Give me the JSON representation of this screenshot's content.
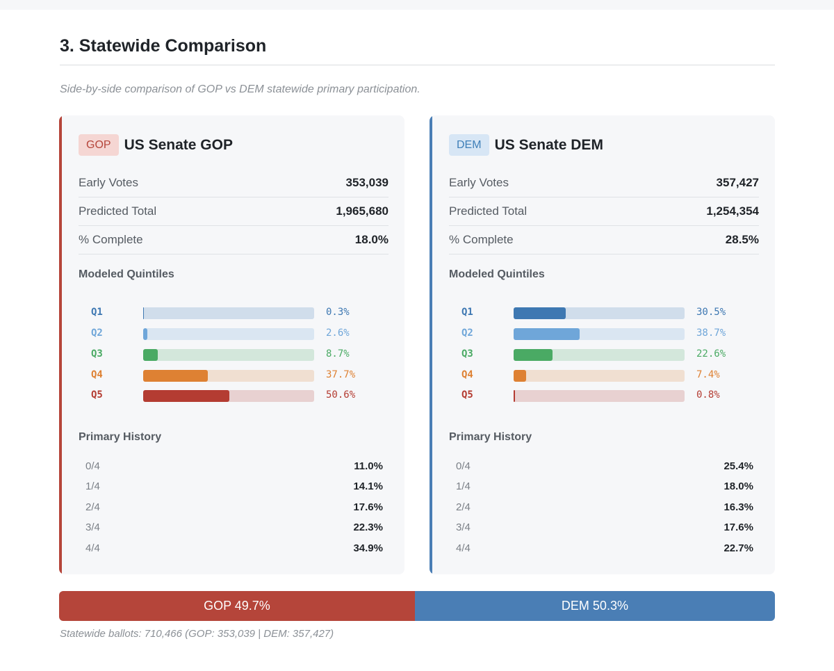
{
  "section": {
    "title": "3. Statewide Comparison",
    "subtitle": "Side-by-side comparison of GOP vs DEM statewide primary participation."
  },
  "colors": {
    "gop": "#b5453a",
    "dem": "#4a7eb5",
    "q1": "#3e78b2",
    "q2": "#6fa6d9",
    "q3": "#4aaa64",
    "q4": "#de8133",
    "q5": "#b43c32"
  },
  "gop": {
    "badge": "GOP",
    "title": "US Senate GOP",
    "stats": [
      {
        "label": "Early Votes",
        "value": "353,039"
      },
      {
        "label": "Predicted Total",
        "value": "1,965,680"
      },
      {
        "label": "% Complete",
        "value": "18.0%"
      }
    ],
    "quintiles_heading": "Modeled Quintiles",
    "quintiles": [
      {
        "label": "Q1",
        "pct": 0.3,
        "text": "0.3%"
      },
      {
        "label": "Q2",
        "pct": 2.6,
        "text": "2.6%"
      },
      {
        "label": "Q3",
        "pct": 8.7,
        "text": "8.7%"
      },
      {
        "label": "Q4",
        "pct": 37.7,
        "text": "37.7%"
      },
      {
        "label": "Q5",
        "pct": 50.6,
        "text": "50.6%"
      }
    ],
    "history_heading": "Primary History",
    "history": [
      {
        "label": "0/4",
        "value": "11.0%"
      },
      {
        "label": "1/4",
        "value": "14.1%"
      },
      {
        "label": "2/4",
        "value": "17.6%"
      },
      {
        "label": "3/4",
        "value": "22.3%"
      },
      {
        "label": "4/4",
        "value": "34.9%"
      }
    ]
  },
  "dem": {
    "badge": "DEM",
    "title": "US Senate DEM",
    "stats": [
      {
        "label": "Early Votes",
        "value": "357,427"
      },
      {
        "label": "Predicted Total",
        "value": "1,254,354"
      },
      {
        "label": "% Complete",
        "value": "28.5%"
      }
    ],
    "quintiles_heading": "Modeled Quintiles",
    "quintiles": [
      {
        "label": "Q1",
        "pct": 30.5,
        "text": "30.5%"
      },
      {
        "label": "Q2",
        "pct": 38.7,
        "text": "38.7%"
      },
      {
        "label": "Q3",
        "pct": 22.6,
        "text": "22.6%"
      },
      {
        "label": "Q4",
        "pct": 7.4,
        "text": "7.4%"
      },
      {
        "label": "Q5",
        "pct": 0.8,
        "text": "0.8%"
      }
    ],
    "history_heading": "Primary History",
    "history": [
      {
        "label": "0/4",
        "value": "25.4%"
      },
      {
        "label": "1/4",
        "value": "18.0%"
      },
      {
        "label": "2/4",
        "value": "16.3%"
      },
      {
        "label": "3/4",
        "value": "17.6%"
      },
      {
        "label": "4/4",
        "value": "22.7%"
      }
    ]
  },
  "split": {
    "gop_pct": 49.7,
    "dem_pct": 50.3,
    "gop_label": "GOP 49.7%",
    "dem_label": "DEM 50.3%"
  },
  "footnote": "Statewide ballots: 710,466 (GOP: 353,039 | DEM: 357,427)"
}
